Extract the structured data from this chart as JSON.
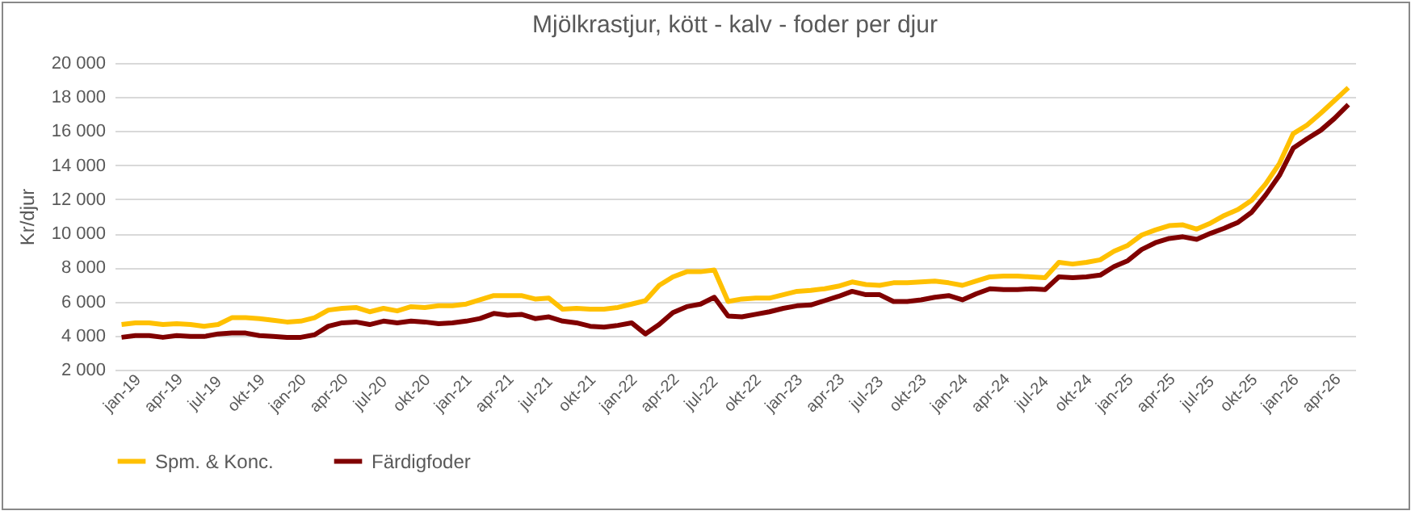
{
  "chart_data": {
    "type": "line",
    "title": "Mjölkrastjur, kött - kalv - foder per djur",
    "ylabel": "Kr/djur",
    "categories": [
      "jan-19",
      null,
      null,
      "apr-19",
      null,
      null,
      "jul-19",
      null,
      null,
      "okt-19",
      null,
      null,
      "jan-20",
      null,
      null,
      "apr-20",
      null,
      null,
      "jul-20",
      null,
      null,
      "okt-20",
      null,
      null,
      "jan-21",
      null,
      null,
      "apr-21",
      null,
      null,
      "jul-21",
      null,
      null,
      "okt-21",
      null,
      null,
      "jan-22",
      null,
      null,
      "apr-22",
      null,
      null,
      "jul-22",
      null,
      null,
      "okt-22",
      null,
      null,
      "jan-23",
      null,
      null,
      "apr-23",
      null,
      null,
      "jul-23",
      null,
      null,
      "okt-23",
      null,
      null,
      "jan-24",
      null,
      null,
      "apr-24",
      null,
      null,
      "jul-24",
      null,
      null,
      "okt-24",
      null,
      null,
      "jan-25",
      null,
      null,
      "apr-25",
      null,
      null,
      "jul-25",
      null,
      null,
      "okt-25",
      null,
      null,
      "jan-26",
      null,
      null,
      "apr-26",
      null,
      null
    ],
    "series": [
      {
        "name": "Spm. & Konc.",
        "color": "#ffc000",
        "values": [
          4650,
          4750,
          4750,
          4650,
          4700,
          4650,
          4550,
          4650,
          5050,
          5050,
          5000,
          4900,
          4800,
          4850,
          5050,
          5500,
          5600,
          5650,
          5400,
          5600,
          5450,
          5700,
          5650,
          5750,
          5750,
          5850,
          6100,
          6350,
          6350,
          6350,
          6150,
          6200,
          5550,
          5600,
          5550,
          5550,
          5650,
          5850,
          6050,
          6950,
          7450,
          7750,
          7750,
          7850,
          6000,
          6150,
          6200,
          6200,
          6400,
          6600,
          6650,
          6750,
          6900,
          7150,
          7000,
          6950,
          7100,
          7100,
          7150,
          7200,
          7100,
          6950,
          7200,
          7450,
          7500,
          7500,
          7450,
          7400,
          8300,
          8200,
          8300,
          8450,
          8950,
          9300,
          9900,
          10200,
          10450,
          10500,
          10250,
          10600,
          11050,
          11400,
          11950,
          12900,
          14100,
          15850,
          16350,
          17050,
          17800,
          18550
        ]
      },
      {
        "name": "Färdigfoder",
        "color": "#800000",
        "values": [
          3900,
          4000,
          4000,
          3900,
          4000,
          3950,
          3950,
          4100,
          4150,
          4150,
          4000,
          3950,
          3900,
          3900,
          4050,
          4550,
          4750,
          4800,
          4650,
          4850,
          4750,
          4850,
          4800,
          4700,
          4750,
          4850,
          5000,
          5300,
          5200,
          5250,
          5000,
          5100,
          4850,
          4750,
          4550,
          4500,
          4600,
          4750,
          4100,
          4650,
          5350,
          5700,
          5850,
          6250,
          5150,
          5100,
          5250,
          5400,
          5600,
          5750,
          5800,
          6050,
          6300,
          6600,
          6400,
          6400,
          6000,
          6000,
          6100,
          6250,
          6350,
          6100,
          6450,
          6750,
          6700,
          6700,
          6750,
          6700,
          7450,
          7400,
          7450,
          7550,
          8050,
          8400,
          9050,
          9450,
          9700,
          9800,
          9650,
          10000,
          10300,
          10650,
          11250,
          12250,
          13400,
          15000,
          15550,
          16050,
          16750,
          17550
        ]
      }
    ],
    "ylim": [
      2000,
      20000
    ],
    "yticks": [
      {
        "value": 2000,
        "label": "2 000"
      },
      {
        "value": 4000,
        "label": "4 000"
      },
      {
        "value": 6000,
        "label": "6 000"
      },
      {
        "value": 8000,
        "label": "8 000"
      },
      {
        "value": 10000,
        "label": "10 000"
      },
      {
        "value": 12000,
        "label": "12 000"
      },
      {
        "value": 14000,
        "label": "14 000"
      },
      {
        "value": 16000,
        "label": "16 000"
      },
      {
        "value": 18000,
        "label": "18 000"
      },
      {
        "value": 20000,
        "label": "20 000"
      }
    ],
    "grid": "y",
    "legend": "bottom",
    "line_style": "solid",
    "marker": "none"
  }
}
